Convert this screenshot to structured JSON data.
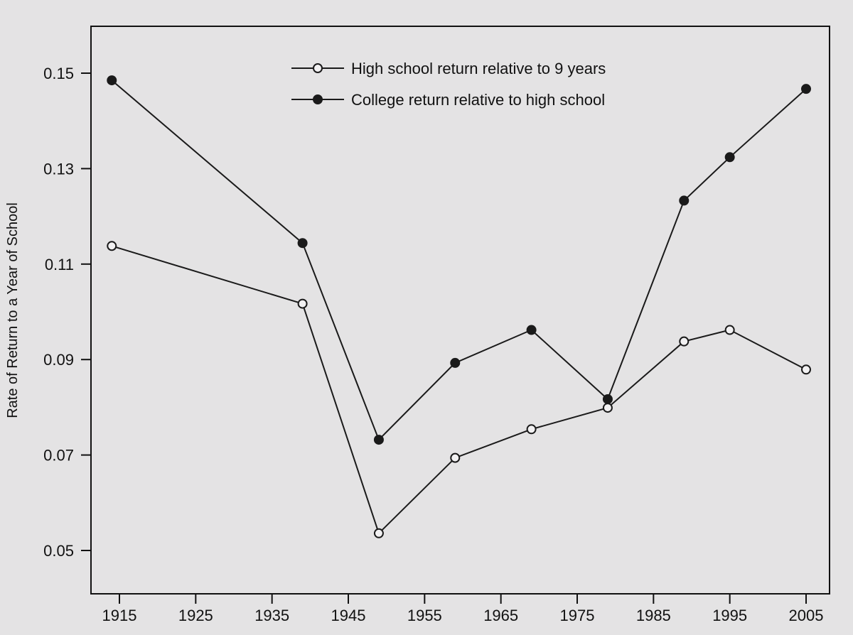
{
  "chart_data": {
    "type": "line",
    "title": "",
    "xlabel": "",
    "ylabel": "Rate of Return to a Year of School",
    "xlim": [
      1915,
      2005
    ],
    "ylim": [
      0.05,
      0.15
    ],
    "x_ticks": [
      "1915",
      "1925",
      "1935",
      "1945",
      "1955",
      "1965",
      "1975",
      "1985",
      "1995",
      "2005"
    ],
    "y_ticks": [
      "0.05",
      "0.07",
      "0.09",
      "0.11",
      "0.13",
      "0.15"
    ],
    "legend_position": "top-right",
    "grid": false,
    "series": [
      {
        "name": "High school return relative to 9 years",
        "marker": "open-circle",
        "color": "#1a1a1a",
        "x": [
          1914,
          1939,
          1949,
          1959,
          1969,
          1979,
          1989,
          1995,
          2005
        ],
        "y": [
          0.1138,
          0.1017,
          0.0536,
          0.0694,
          0.0754,
          0.0799,
          0.0938,
          0.0962,
          0.0879
        ]
      },
      {
        "name": "College return relative to high school",
        "marker": "filled-circle",
        "color": "#1a1a1a",
        "x": [
          1914,
          1939,
          1949,
          1959,
          1969,
          1979,
          1989,
          1995,
          2005
        ],
        "y": [
          0.1485,
          0.1144,
          0.0732,
          0.0893,
          0.0962,
          0.0817,
          0.1233,
          0.1324,
          0.1467
        ]
      }
    ]
  }
}
